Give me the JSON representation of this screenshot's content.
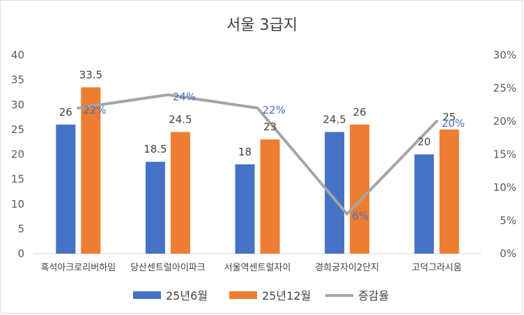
{
  "chart_data": {
    "type": "bar",
    "title": "서울 3급지",
    "categories": [
      "흑석아크로리버하임",
      "당산센트럴아이파크",
      "서울역센트럴자이",
      "경희궁자이2단지",
      "고덕그라시움"
    ],
    "series": [
      {
        "name": "25년6월",
        "kind": "bar",
        "color": "#4472c4",
        "values": [
          26,
          18.5,
          18,
          24.5,
          20
        ],
        "labels": [
          "26",
          "18.5",
          "18",
          "24.5",
          "20"
        ]
      },
      {
        "name": "25년12월",
        "kind": "bar",
        "color": "#ed7d31",
        "values": [
          33.5,
          24.5,
          23,
          26,
          25
        ],
        "labels": [
          "33.5",
          "24.5",
          "23",
          "26",
          "25"
        ]
      },
      {
        "name": "증감율",
        "kind": "line",
        "axis": "secondary",
        "color": "#a5a5a5",
        "values": [
          0.22,
          0.24,
          0.22,
          0.06,
          0.2
        ],
        "labels": [
          "22%",
          "24%",
          "22%",
          "6%",
          "20%"
        ]
      }
    ],
    "ylim": [
      0,
      40
    ],
    "yticks": [
      "0",
      "5",
      "10",
      "15",
      "20",
      "25",
      "30",
      "35",
      "40"
    ],
    "y2lim": [
      0,
      0.3
    ],
    "y2ticks": [
      "0%",
      "5%",
      "10%",
      "15%",
      "20%",
      "25%",
      "30%"
    ],
    "grid": false,
    "legend": "bottom"
  }
}
